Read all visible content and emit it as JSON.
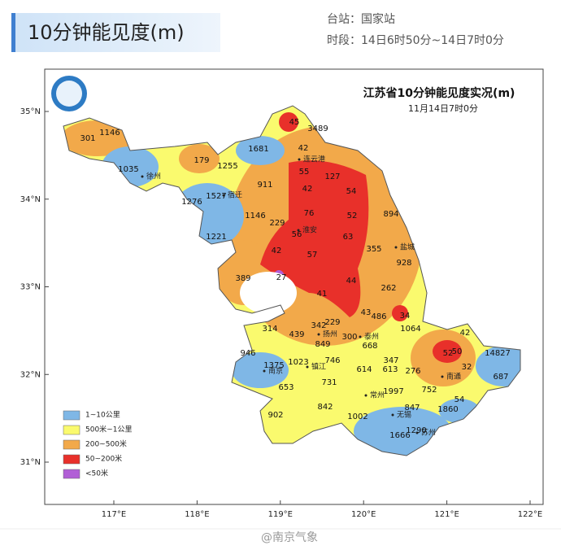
{
  "header": {
    "title": "10分钟能见度(m)",
    "station": "台站：国家站",
    "period": "时段：14日6时50分~14日7时0分"
  },
  "map": {
    "title": "江苏省10分钟能见度实况(m)",
    "subtitle": "11月14日7时0分",
    "lat_labels": [
      "35°N",
      "34°N",
      "33°N",
      "32°N",
      "31°N"
    ],
    "lon_labels": [
      "117°E",
      "118°E",
      "119°E",
      "120°E",
      "121°E",
      "122°E"
    ],
    "legend": [
      {
        "label": "1~10公里",
        "color": "#7fb7e6"
      },
      {
        "label": "500米~1公里",
        "color": "#fafa6e"
      },
      {
        "label": "200~500米",
        "color": "#f2a94a"
      },
      {
        "label": "50~200米",
        "color": "#e8302a"
      },
      {
        "label": "<50米",
        "color": "#b15fd6"
      }
    ],
    "cities": [
      "徐州",
      "宿迁",
      "连云港",
      "淮安",
      "盐城",
      "扬州",
      "泰州",
      "南京",
      "镇江",
      "常州",
      "无锡",
      "南通",
      "苏州"
    ],
    "stations": [
      1146,
      301,
      1035,
      179,
      1255,
      1681,
      45,
      3489,
      42,
      55,
      127,
      911,
      42,
      54,
      1527,
      1276,
      1146,
      76,
      52,
      894,
      229,
      56,
      1221,
      63,
      355,
      928,
      42,
      57,
      389,
      27,
      44,
      41,
      262,
      43,
      486,
      34,
      314,
      342,
      229,
      439,
      849,
      300,
      668,
      1064,
      42,
      52,
      50,
      14827,
      946,
      1375,
      1023,
      746,
      347,
      614,
      613,
      276,
      32,
      687,
      653,
      731,
      752,
      1997,
      842,
      847,
      54,
      1860,
      902,
      1002,
      1290,
      1666
    ]
  },
  "watermark": "@南京气象"
}
